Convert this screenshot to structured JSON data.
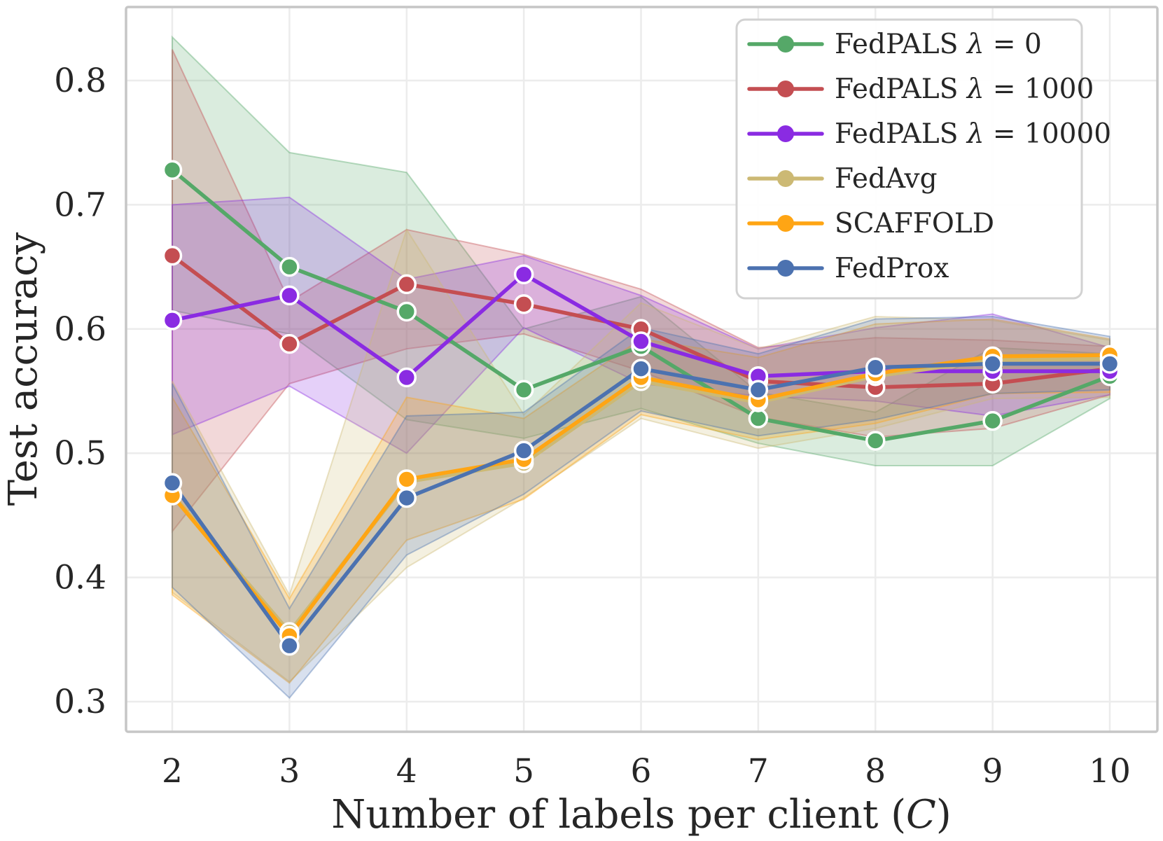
{
  "figure": {
    "background": "#ffffff",
    "grid_color": "#ececec",
    "spine_color": "#c6c6c6",
    "text_color": "#262626"
  },
  "axes": {
    "ylabel": "Test accuracy",
    "xlabel_main": "Number of labels per client (",
    "xlabel_var": "C",
    "xlabel_end": ")",
    "x_tick_labels": [
      "2",
      "3",
      "4",
      "5",
      "6",
      "7",
      "8",
      "9",
      "10"
    ],
    "y_tick_labels": [
      "0.3",
      "0.4",
      "0.5",
      "0.6",
      "0.7",
      "0.8"
    ]
  },
  "chart_data": {
    "type": "line",
    "title": "",
    "xlabel": "Number of labels per client (C)",
    "ylabel": "Test accuracy",
    "x": [
      2,
      3,
      4,
      5,
      6,
      7,
      8,
      9,
      10
    ],
    "xlim": [
      1.6,
      10.4
    ],
    "ylim": [
      0.276,
      0.859
    ],
    "grid": true,
    "legend_position": "upper right",
    "band_style": "confidence interval, fill alpha ~0.22",
    "series": [
      {
        "name": "FedPALS λ = 0",
        "color": "#55a868",
        "values": [
          0.728,
          0.65,
          0.614,
          0.551,
          0.586,
          0.528,
          0.51,
          0.526,
          0.562
        ],
        "band_lo": [
          0.615,
          0.596,
          0.527,
          0.512,
          0.536,
          0.508,
          0.49,
          0.49,
          0.544
        ],
        "band_hi": [
          0.835,
          0.742,
          0.726,
          0.6,
          0.626,
          0.549,
          0.533,
          0.585,
          0.58
        ]
      },
      {
        "name": "FedPALS λ = 1000",
        "color": "#c44e52",
        "values": [
          0.659,
          0.588,
          0.636,
          0.62,
          0.6,
          0.558,
          0.553,
          0.556,
          0.568
        ],
        "band_lo": [
          0.437,
          0.556,
          0.584,
          0.596,
          0.566,
          0.529,
          0.513,
          0.52,
          0.547
        ],
        "band_hi": [
          0.825,
          0.622,
          0.68,
          0.66,
          0.632,
          0.585,
          0.593,
          0.591,
          0.586
        ]
      },
      {
        "name": "FedPALS λ = 10000",
        "color": "#8a2be2",
        "values": [
          0.607,
          0.627,
          0.561,
          0.644,
          0.59,
          0.562,
          0.566,
          0.566,
          0.566
        ],
        "band_lo": [
          0.515,
          0.554,
          0.5,
          0.601,
          0.556,
          0.546,
          0.542,
          0.53,
          0.547
        ],
        "band_hi": [
          0.7,
          0.706,
          0.64,
          0.659,
          0.627,
          0.584,
          0.601,
          0.612,
          0.585
        ]
      },
      {
        "name": "FedAvg",
        "color": "#ccb974",
        "values": [
          0.467,
          0.356,
          0.477,
          0.492,
          0.558,
          0.541,
          0.562,
          0.575,
          0.576
        ],
        "band_lo": [
          0.388,
          0.316,
          0.408,
          0.464,
          0.528,
          0.504,
          0.52,
          0.544,
          0.545
        ],
        "band_hi": [
          0.558,
          0.386,
          0.68,
          0.531,
          0.621,
          0.584,
          0.61,
          0.607,
          0.591
        ]
      },
      {
        "name": "SCAFFOLD",
        "color": "#ffa514",
        "values": [
          0.466,
          0.353,
          0.479,
          0.495,
          0.561,
          0.543,
          0.564,
          0.578,
          0.579
        ],
        "band_lo": [
          0.386,
          0.315,
          0.43,
          0.463,
          0.531,
          0.511,
          0.524,
          0.548,
          0.549
        ],
        "band_hi": [
          0.545,
          0.383,
          0.545,
          0.528,
          0.592,
          0.577,
          0.604,
          0.608,
          0.592
        ]
      },
      {
        "name": "FedProx",
        "color": "#4c72b0",
        "values": [
          0.476,
          0.345,
          0.464,
          0.502,
          0.568,
          0.551,
          0.569,
          0.572,
          0.572
        ],
        "band_lo": [
          0.392,
          0.303,
          0.418,
          0.467,
          0.534,
          0.514,
          0.527,
          0.548,
          0.551
        ],
        "band_hi": [
          0.556,
          0.375,
          0.53,
          0.533,
          0.601,
          0.58,
          0.608,
          0.61,
          0.594
        ]
      }
    ]
  }
}
